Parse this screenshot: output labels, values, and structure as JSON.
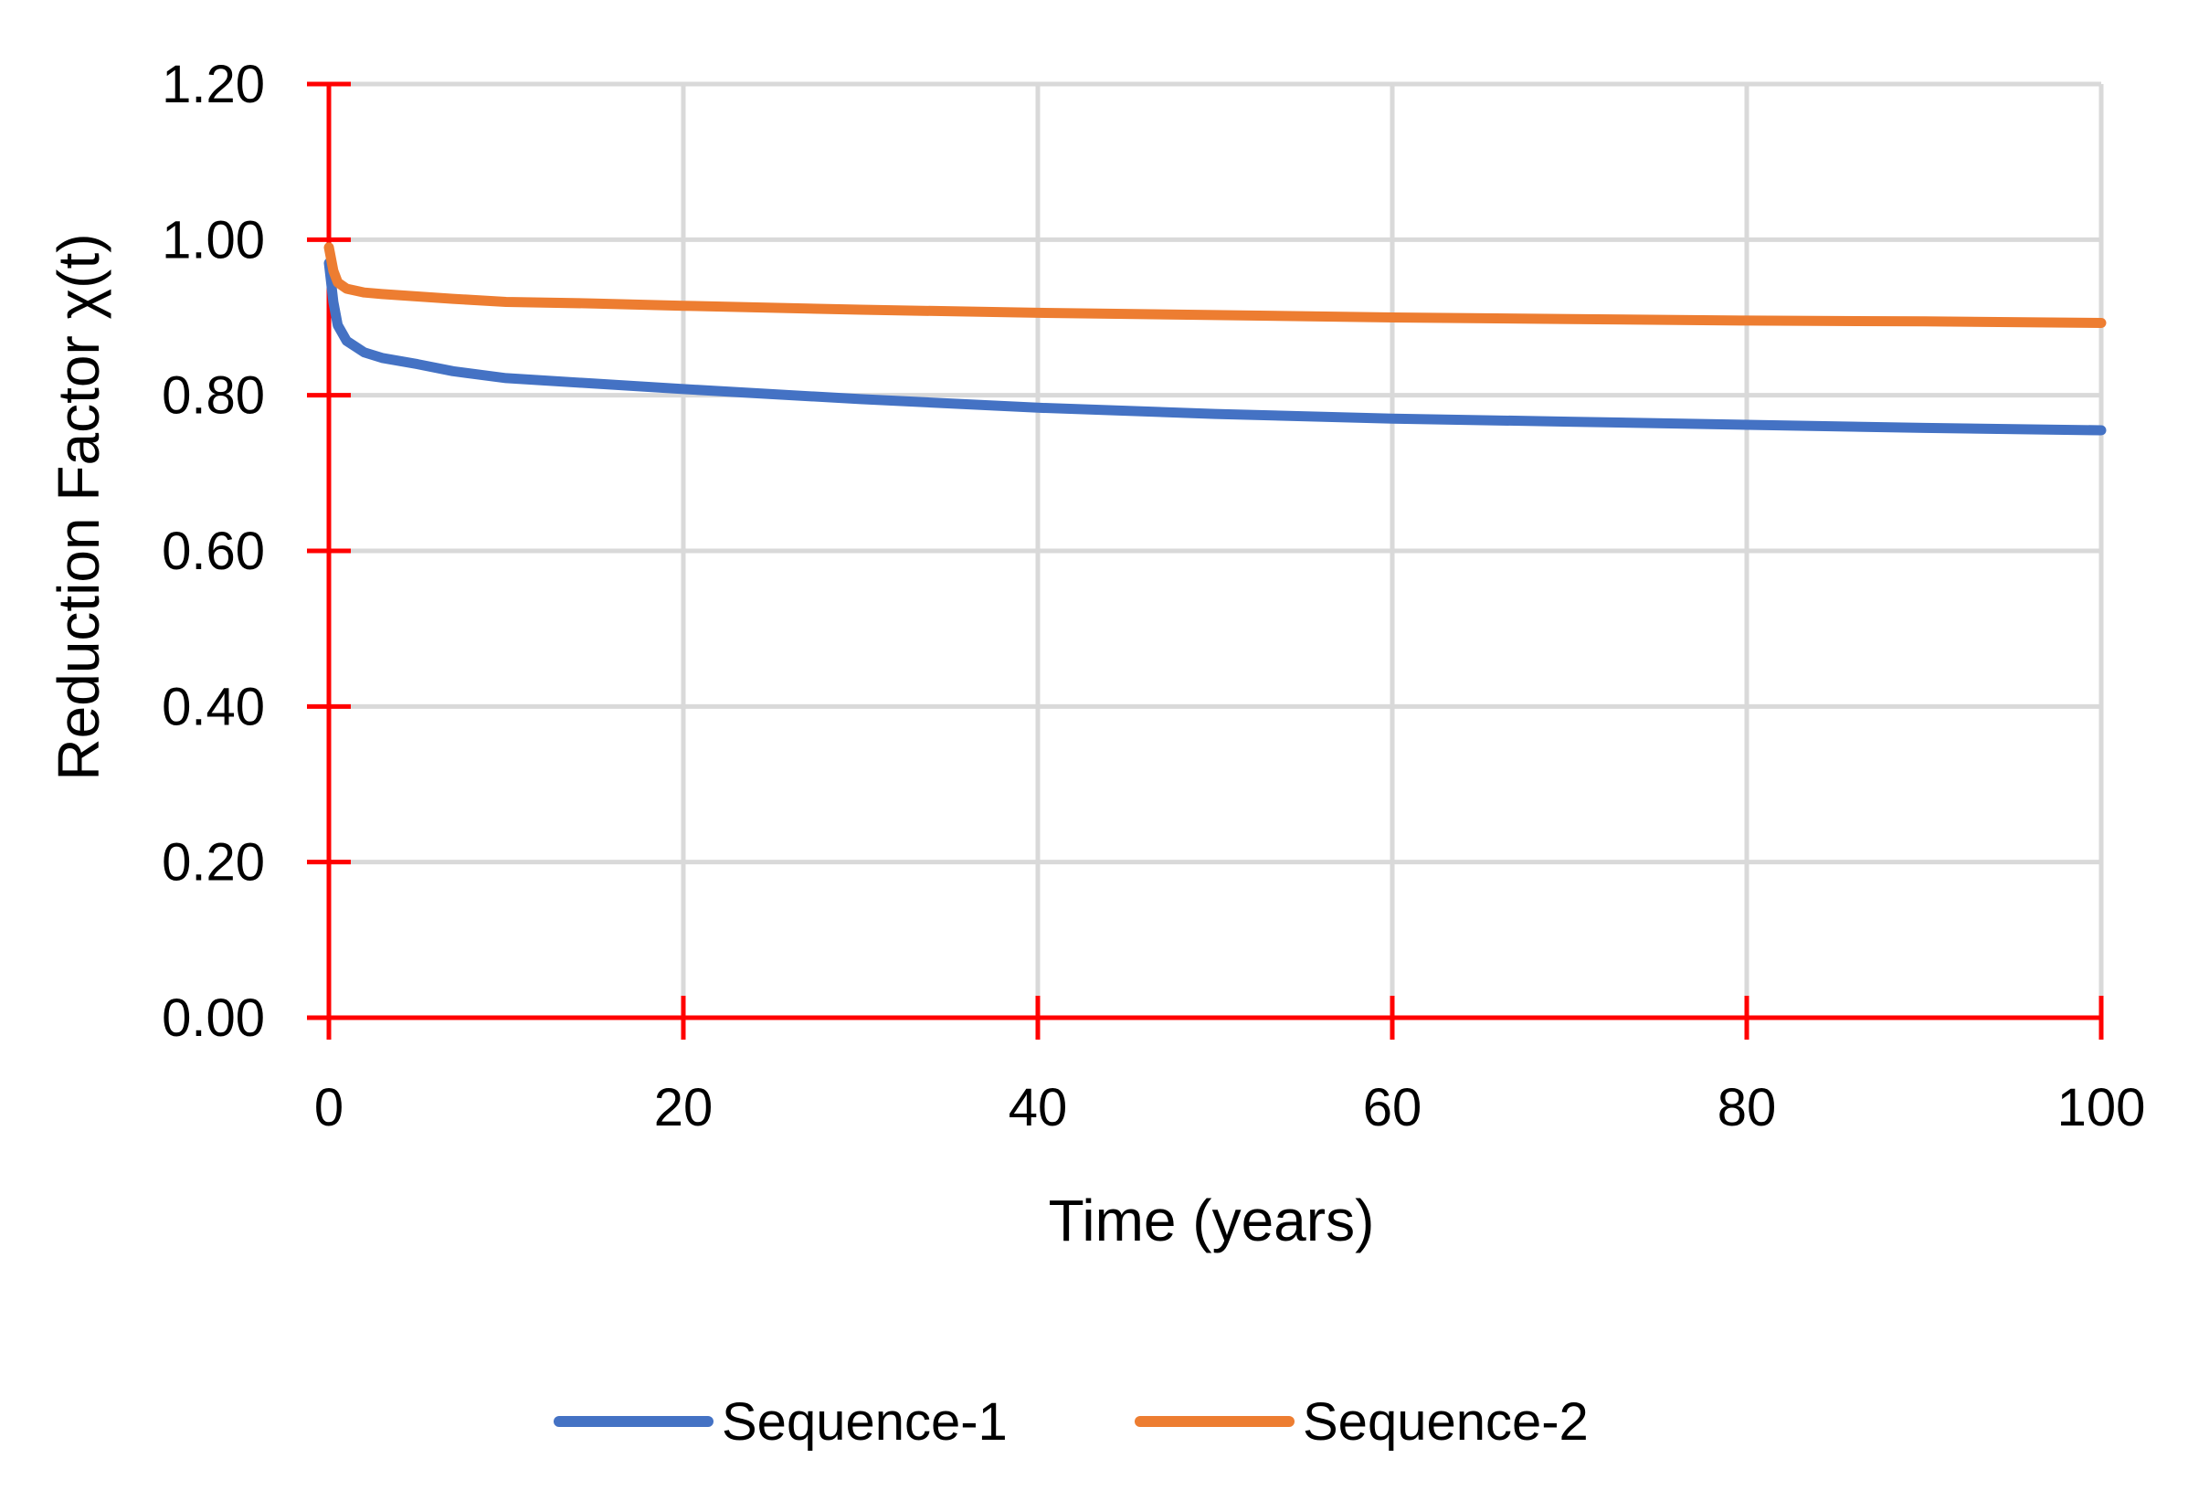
{
  "chart_data": {
    "type": "line",
    "title": "",
    "xlabel": "Time (years)",
    "ylabel": "Reduction Factor χ(t)",
    "xlim": [
      0,
      100
    ],
    "ylim": [
      0,
      1.2
    ],
    "x_ticks": [
      0,
      20,
      40,
      60,
      80,
      100
    ],
    "x_tick_labels": [
      "0",
      "20",
      "40",
      "60",
      "80",
      "100"
    ],
    "y_ticks": [
      0,
      0.2,
      0.4,
      0.6,
      0.8,
      1.0,
      1.2
    ],
    "y_tick_labels": [
      "0.00",
      "0.20",
      "0.40",
      "0.60",
      "0.80",
      "1.00",
      "1.20"
    ],
    "grid": true,
    "legend_position": "bottom",
    "axis_color": "#ff0000",
    "grid_color": "#d9d9d9",
    "series": [
      {
        "name": "Sequence-1",
        "color": "#4472c4",
        "x": [
          0,
          0.25,
          0.5,
          1,
          2,
          3,
          5,
          7,
          10,
          15,
          20,
          30,
          40,
          50,
          60,
          70,
          80,
          90,
          100
        ],
        "values": [
          0.97,
          0.92,
          0.89,
          0.87,
          0.855,
          0.848,
          0.84,
          0.831,
          0.822,
          0.815,
          0.808,
          0.795,
          0.784,
          0.776,
          0.77,
          0.766,
          0.762,
          0.758,
          0.755
        ]
      },
      {
        "name": "Sequence-2",
        "color": "#ed7d31",
        "x": [
          0,
          0.25,
          0.5,
          1,
          2,
          3,
          5,
          7,
          10,
          15,
          20,
          30,
          40,
          50,
          60,
          70,
          80,
          90,
          100
        ],
        "values": [
          0.99,
          0.96,
          0.945,
          0.937,
          0.932,
          0.93,
          0.927,
          0.924,
          0.92,
          0.918,
          0.915,
          0.91,
          0.906,
          0.903,
          0.9,
          0.898,
          0.896,
          0.895,
          0.893
        ]
      }
    ]
  }
}
